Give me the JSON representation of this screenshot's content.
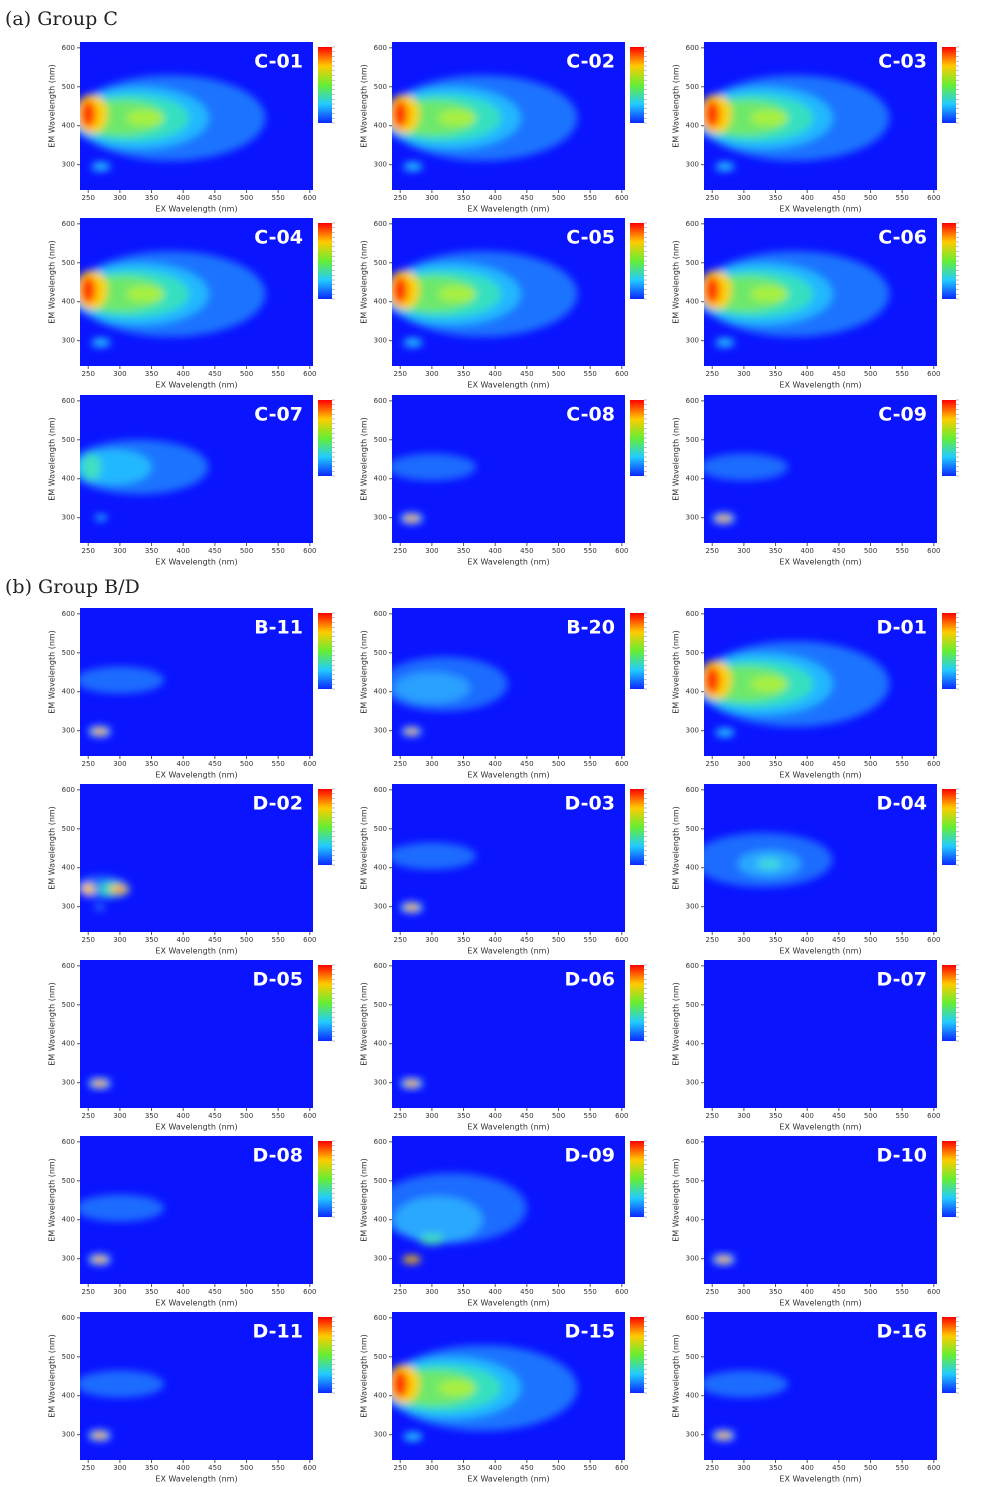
{
  "axes": {
    "xlim": [
      237,
      605
    ],
    "ylim": [
      235,
      615
    ],
    "xticks": [
      250,
      300,
      350,
      400,
      450,
      500,
      550,
      600
    ],
    "yticks": [
      300,
      400,
      500,
      600
    ],
    "xlabel": "EX Wavelength (nm)",
    "ylabel": "EM Wavelength (nm)"
  },
  "sections": [
    {
      "label": "(a) Group C",
      "panels": [
        "C-01",
        "C-02",
        "C-03",
        "C-04",
        "C-05",
        "C-06",
        "C-07",
        "C-08",
        "C-09"
      ]
    },
    {
      "label": "(b) Group B/D",
      "panels": [
        "B-11",
        "B-20",
        "D-01",
        "D-02",
        "D-03",
        "D-04",
        "D-05",
        "D-06",
        "D-07",
        "D-08",
        "D-09",
        "D-10",
        "D-11",
        "D-15",
        "D-16"
      ]
    }
  ]
}
